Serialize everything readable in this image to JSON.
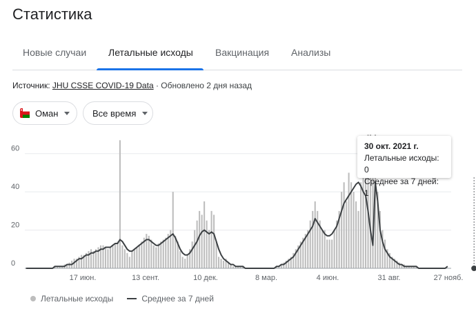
{
  "page": {
    "title": "Статистика"
  },
  "tabs": [
    {
      "label": "Новые случаи",
      "active": false
    },
    {
      "label": "Летальные исходы",
      "active": true
    },
    {
      "label": "Вакцинация",
      "active": false
    },
    {
      "label": "Анализы",
      "active": false
    }
  ],
  "source": {
    "prefix": "Источник:",
    "link": "JHU CSSE COVID-19 Data",
    "updated": "· Обновлено 2 дня назад"
  },
  "filters": {
    "country": "Оман",
    "period": "Все время"
  },
  "tooltip": {
    "date": "30 окт. 2021 г.",
    "deaths": "Летальные исходы: 0",
    "avg": "Среднее за 7 дней: 1"
  },
  "legend": {
    "bars": "Летальные исходы",
    "line": "Среднее за 7 дней"
  },
  "colors": {
    "bar": "#bdbdbd",
    "line": "#3c4043",
    "accent": "#1a73e8",
    "flag_red": "#db161b",
    "flag_green": "#008000"
  },
  "icons": {
    "flag": "oman-flag-icon",
    "dropdown": "caret-down-icon"
  },
  "chart_data": {
    "type": "bar",
    "title": "",
    "xlabel": "",
    "ylabel": "",
    "ylim": [
      0,
      70
    ],
    "yticks": [
      "0",
      "20",
      "40",
      "60"
    ],
    "xticks": [
      "17 июн.",
      "13 сент.",
      "10 дек.",
      "8 мар.",
      "4 июн.",
      "31 авг.",
      "27 нояб."
    ],
    "grid": true,
    "legend_position": "bottom-left",
    "series": [
      {
        "name": "Летальные исходы",
        "type": "bar",
        "values": [
          0,
          0,
          0,
          0,
          0,
          0,
          0,
          0,
          0,
          0,
          0,
          0,
          1,
          1,
          1,
          1,
          2,
          2,
          3,
          4,
          5,
          5,
          6,
          7,
          7,
          8,
          9,
          10,
          9,
          10,
          11,
          12,
          12,
          11,
          10,
          11,
          12,
          13,
          14,
          67,
          12,
          10,
          8,
          6,
          9,
          10,
          11,
          12,
          14,
          16,
          18,
          17,
          15,
          12,
          11,
          13,
          14,
          15,
          16,
          18,
          20,
          40,
          17,
          14,
          9,
          6,
          5,
          7,
          10,
          14,
          20,
          25,
          30,
          28,
          35,
          25,
          20,
          30,
          28,
          14,
          6,
          5,
          4,
          5,
          3,
          2,
          1,
          1,
          1,
          1,
          1,
          0,
          0,
          0,
          0,
          0,
          0,
          0,
          0,
          0,
          0,
          0,
          0,
          0,
          1,
          1,
          2,
          3,
          4,
          5,
          6,
          8,
          10,
          12,
          14,
          16,
          18,
          20,
          25,
          30,
          35,
          30,
          25,
          20,
          20,
          15,
          15,
          15,
          20,
          25,
          30,
          40,
          45,
          35,
          50,
          45,
          40,
          35,
          30,
          45,
          55,
          62,
          70,
          70,
          68,
          70,
          40,
          30,
          20,
          15,
          10,
          8,
          6,
          5,
          4,
          3,
          2,
          2,
          1,
          1,
          1,
          1,
          1,
          0,
          0,
          0,
          0,
          0,
          0,
          0,
          0,
          0,
          0,
          0,
          0,
          0,
          0
        ]
      },
      {
        "name": "Среднее за 7 дней",
        "type": "line",
        "values": [
          0,
          0,
          0,
          0,
          0,
          0,
          0,
          0,
          0,
          0,
          0,
          0,
          1,
          1,
          1,
          1,
          1,
          2,
          2,
          2,
          3,
          4,
          5,
          5,
          6,
          7,
          7,
          8,
          8,
          9,
          9,
          10,
          10,
          11,
          11,
          11,
          12,
          13,
          13,
          15,
          14,
          12,
          10,
          9,
          9,
          10,
          11,
          12,
          13,
          14,
          15,
          15,
          14,
          13,
          12,
          12,
          13,
          14,
          15,
          16,
          17,
          18,
          16,
          13,
          10,
          8,
          7,
          7,
          8,
          10,
          12,
          14,
          17,
          19,
          20,
          19,
          18,
          19,
          18,
          14,
          10,
          7,
          5,
          4,
          3,
          2,
          2,
          1,
          1,
          1,
          1,
          0,
          0,
          0,
          0,
          0,
          0,
          0,
          0,
          0,
          0,
          0,
          0,
          0,
          1,
          1,
          2,
          2,
          3,
          4,
          5,
          6,
          8,
          10,
          12,
          14,
          16,
          18,
          20,
          22,
          26,
          24,
          22,
          20,
          18,
          17,
          17,
          18,
          20,
          22,
          26,
          30,
          34,
          36,
          38,
          40,
          42,
          44,
          45,
          43,
          40,
          38,
          30,
          20,
          12,
          45,
          35,
          20,
          14,
          10,
          8,
          6,
          5,
          4,
          3,
          2,
          2,
          1,
          1,
          1,
          1,
          1,
          1,
          0,
          0,
          0,
          0,
          0,
          0,
          0,
          0,
          0,
          0,
          0,
          0,
          1
        ]
      }
    ],
    "highlight": {
      "index": 186,
      "label": "30 окт. 2021 г."
    }
  }
}
